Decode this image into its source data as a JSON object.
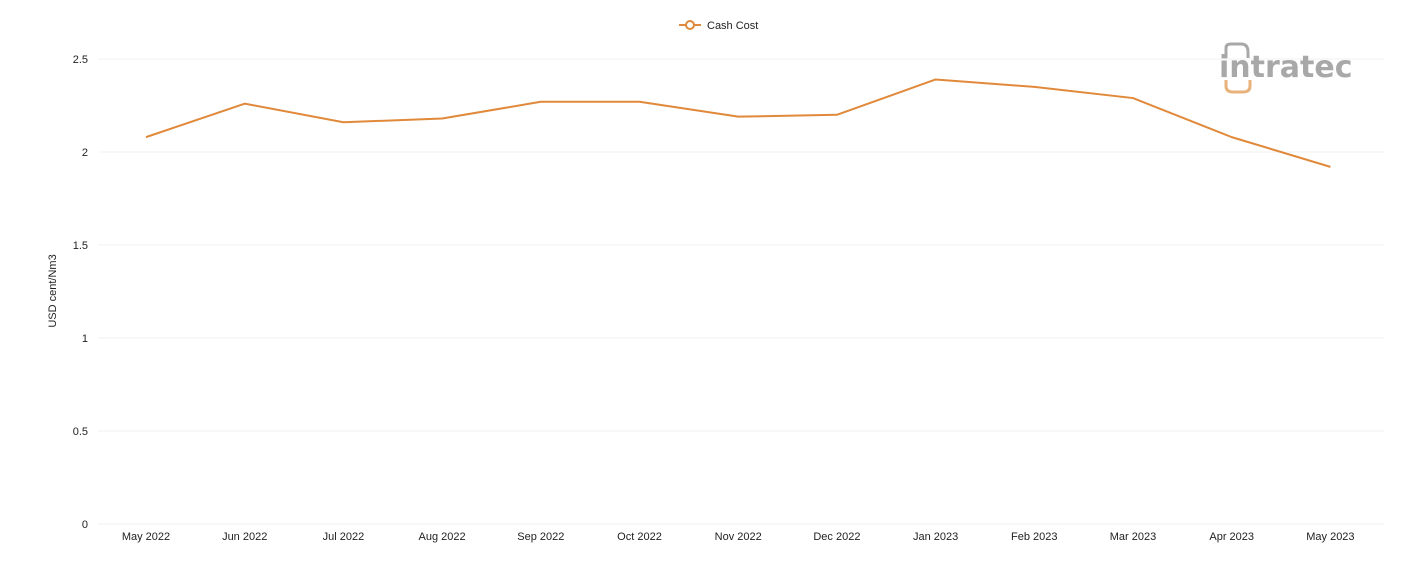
{
  "colors": {
    "series": "#e0893a",
    "grid": "#f1f1f1",
    "logo_gray": "#a8a8a8",
    "logo_accent": "#e8b27c"
  },
  "logo": {
    "text": "intratec"
  },
  "chart_data": {
    "type": "line",
    "title": "",
    "xlabel": "",
    "ylabel": "USD cent/Nm3",
    "ylim": [
      0,
      2.5
    ],
    "yticks": [
      "0",
      "0.5",
      "1",
      "1.5",
      "2",
      "2.5"
    ],
    "ytick_values": [
      0,
      0.5,
      1,
      1.5,
      2,
      2.5
    ],
    "grid": true,
    "legend_position": "top-center",
    "categories": [
      "May 2022",
      "Jun 2022",
      "Jul 2022",
      "Aug 2022",
      "Sep 2022",
      "Oct 2022",
      "Nov 2022",
      "Dec 2022",
      "Jan 2023",
      "Feb 2023",
      "Mar 2023",
      "Apr 2023",
      "May 2023"
    ],
    "series": [
      {
        "name": "Cash Cost",
        "values": [
          2.08,
          2.26,
          2.16,
          2.18,
          2.27,
          2.27,
          2.19,
          2.2,
          2.39,
          2.35,
          2.29,
          2.08,
          1.92
        ]
      }
    ]
  }
}
